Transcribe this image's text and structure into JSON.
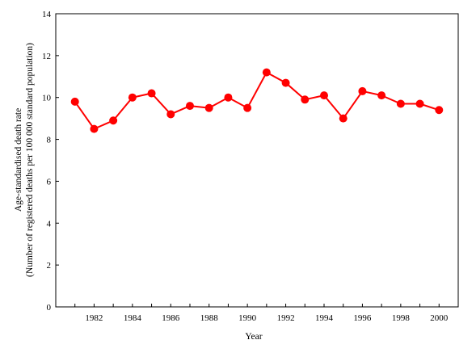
{
  "chart_data": {
    "type": "line",
    "title": "",
    "xlabel": "Year",
    "ylabel_lines": [
      "Age-standardised death rate",
      "(Number of registered deaths per 100 000 standard population)"
    ],
    "xlim": [
      1980,
      2001
    ],
    "ylim": [
      0,
      14
    ],
    "x_ticks": [
      1982,
      1984,
      1986,
      1988,
      1990,
      1992,
      1994,
      1996,
      1998,
      2000
    ],
    "y_ticks": [
      0,
      2,
      4,
      6,
      8,
      10,
      12,
      14
    ],
    "grid": false,
    "legend": "none",
    "series": [
      {
        "color": "#ff0000",
        "x": [
          1981,
          1982,
          1983,
          1984,
          1985,
          1986,
          1987,
          1988,
          1989,
          1990,
          1991,
          1992,
          1993,
          1994,
          1995,
          1996,
          1997,
          1998,
          1999,
          2000
        ],
        "y": [
          9.8,
          8.5,
          8.9,
          10.0,
          10.2,
          9.2,
          9.6,
          9.5,
          10.0,
          9.5,
          11.2,
          10.7,
          9.9,
          10.1,
          9.0,
          10.3,
          10.1,
          9.7,
          9.7,
          9.4
        ]
      }
    ]
  }
}
